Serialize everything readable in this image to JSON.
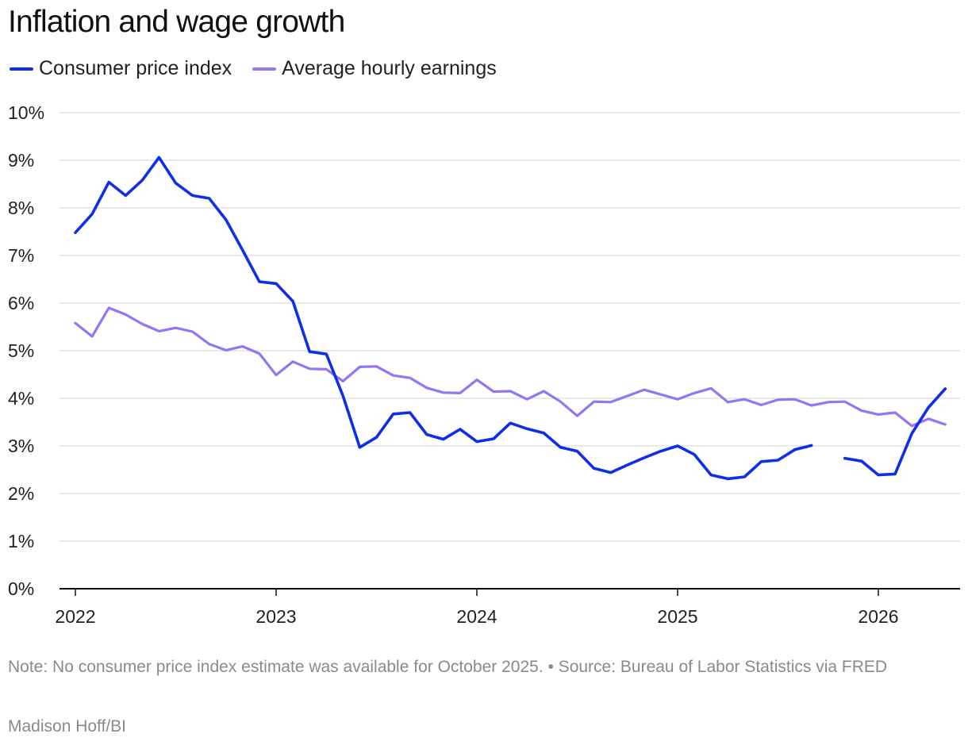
{
  "header": {
    "title": "Inflation and wage growth"
  },
  "footer": {
    "note": "Note: No consumer price index estimate was available for October 2025. • Source: Bureau of Labor Statistics via FRED",
    "credit": "Madison Hoff/BI"
  },
  "chart_data": {
    "type": "line",
    "title": "Inflation and wage growth",
    "xlabel": "",
    "ylabel": "",
    "ylim": [
      0,
      10
    ],
    "xlim": [
      "2022-01",
      "2026-05"
    ],
    "grid": true,
    "legend_position": "top-left",
    "y_ticks": [
      "0%",
      "1%",
      "2%",
      "3%",
      "4%",
      "5%",
      "6%",
      "7%",
      "8%",
      "9%",
      "10%"
    ],
    "x_ticks": [
      "2022",
      "2023",
      "2024",
      "2025",
      "2026"
    ],
    "x": [
      "2022-01",
      "2022-02",
      "2022-03",
      "2022-04",
      "2022-05",
      "2022-06",
      "2022-07",
      "2022-08",
      "2022-09",
      "2022-10",
      "2022-11",
      "2022-12",
      "2023-01",
      "2023-02",
      "2023-03",
      "2023-04",
      "2023-05",
      "2023-06",
      "2023-07",
      "2023-08",
      "2023-09",
      "2023-10",
      "2023-11",
      "2023-12",
      "2024-01",
      "2024-02",
      "2024-03",
      "2024-04",
      "2024-05",
      "2024-06",
      "2024-07",
      "2024-08",
      "2024-09",
      "2024-10",
      "2024-11",
      "2024-12",
      "2025-01",
      "2025-02",
      "2025-03",
      "2025-04",
      "2025-05",
      "2025-06",
      "2025-07",
      "2025-08",
      "2025-09",
      "2025-10",
      "2025-11",
      "2025-12",
      "2026-01",
      "2026-02",
      "2026-03",
      "2026-04",
      "2026-05"
    ],
    "series": [
      {
        "name": "Consumer price index",
        "color": "#0f2ee8",
        "values": [
          7.48,
          7.87,
          8.54,
          8.26,
          8.58,
          9.06,
          8.52,
          8.26,
          8.2,
          7.75,
          7.11,
          6.45,
          6.41,
          6.04,
          4.98,
          4.93,
          4.05,
          2.97,
          3.18,
          3.67,
          3.7,
          3.24,
          3.14,
          3.35,
          3.09,
          3.15,
          3.48,
          3.36,
          3.27,
          2.97,
          2.89,
          2.53,
          2.44,
          2.6,
          2.75,
          2.89,
          3.0,
          2.82,
          2.39,
          2.31,
          2.35,
          2.67,
          2.7,
          2.92,
          3.01,
          null,
          2.74,
          2.68,
          2.39,
          2.41,
          3.26,
          3.81,
          4.2
        ]
      },
      {
        "name": "Average hourly earnings",
        "color": "#9575f2",
        "values": [
          5.58,
          5.3,
          5.9,
          5.76,
          5.56,
          5.41,
          5.48,
          5.4,
          5.14,
          5.01,
          5.09,
          4.94,
          4.49,
          4.77,
          4.62,
          4.61,
          4.36,
          4.66,
          4.67,
          4.48,
          4.43,
          4.22,
          4.12,
          4.11,
          4.39,
          4.14,
          4.15,
          3.98,
          4.15,
          3.93,
          3.63,
          3.93,
          3.92,
          4.05,
          4.18,
          4.08,
          3.98,
          4.11,
          4.21,
          3.92,
          3.98,
          3.86,
          3.97,
          3.98,
          3.85,
          3.92,
          3.93,
          3.74,
          3.66,
          3.7,
          3.42,
          3.57,
          3.45
        ]
      }
    ]
  }
}
